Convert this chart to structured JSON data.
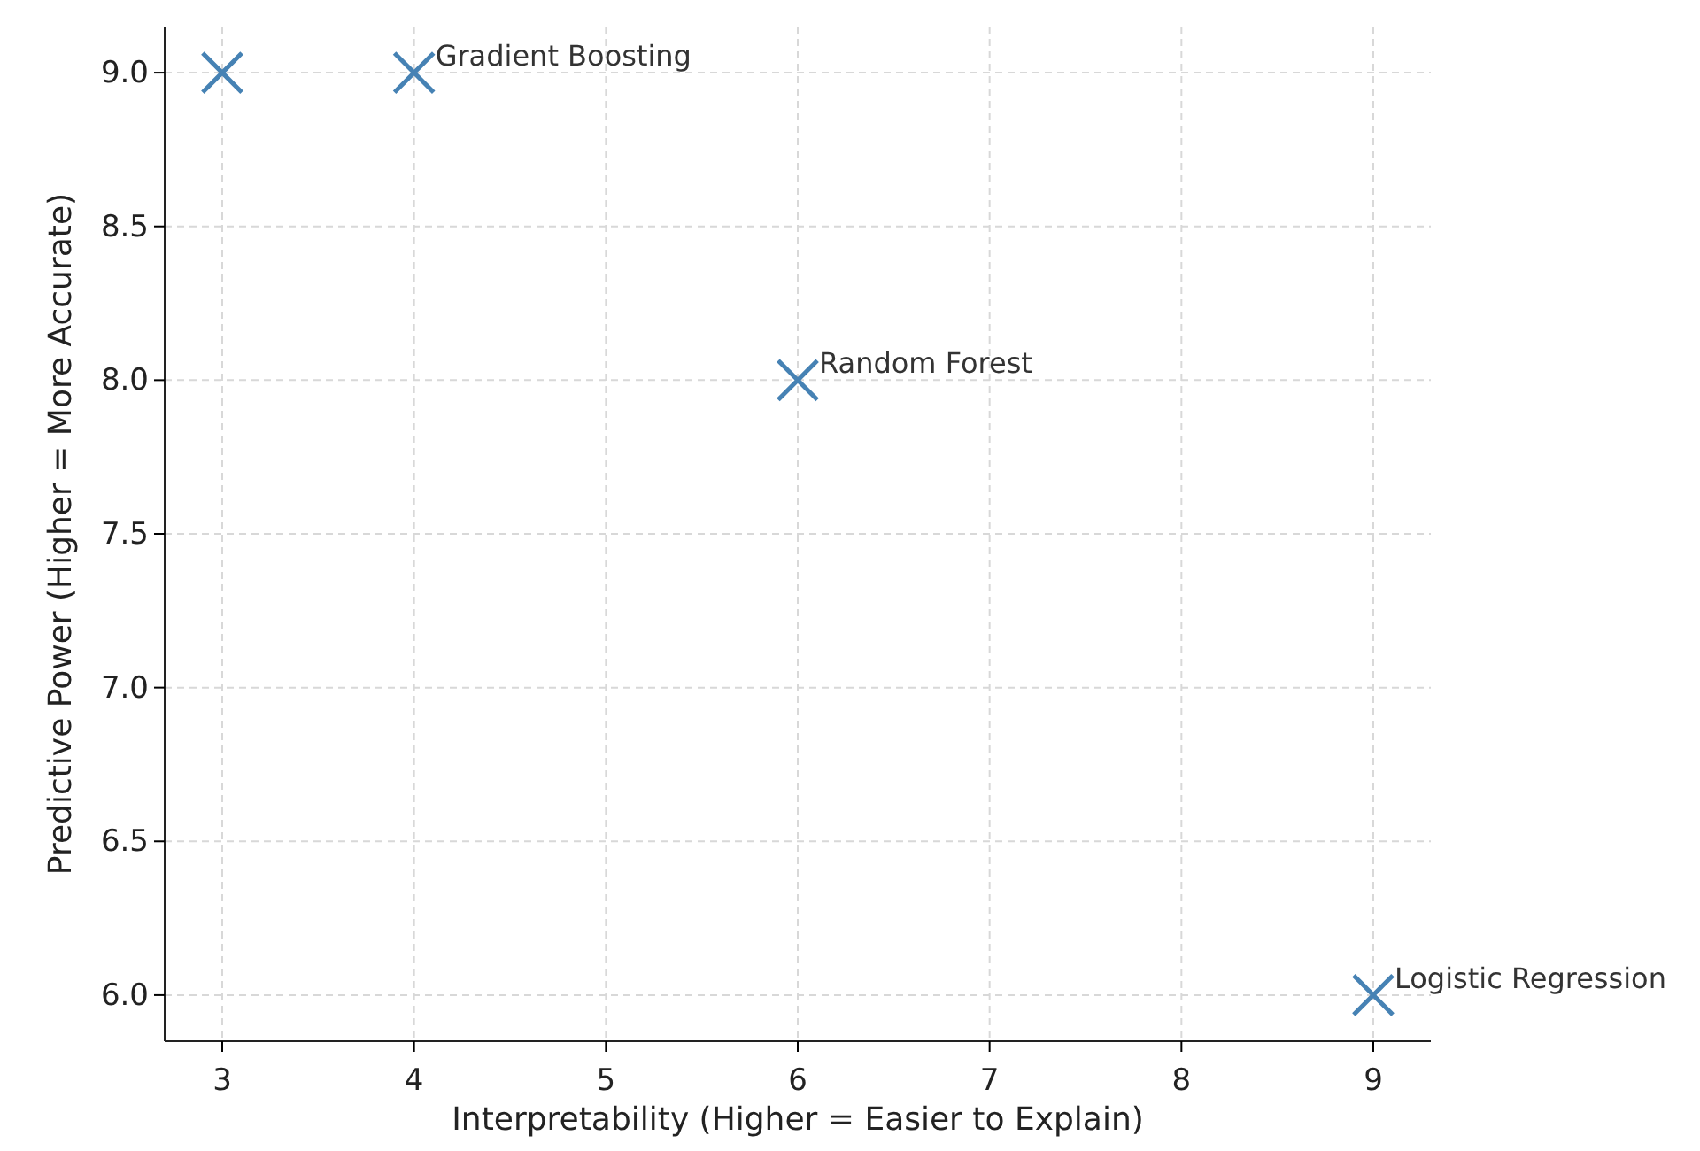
{
  "chart_data": {
    "type": "scatter",
    "xlabel": "Interpretability (Higher = Easier to Explain)",
    "ylabel": "Predictive Power (Higher = More Accurate)",
    "x": [
      3,
      4,
      6,
      9
    ],
    "series": [
      {
        "color": "#4682b4",
        "values": [
          9,
          9,
          8,
          6
        ]
      }
    ],
    "marker": "cross",
    "xlim": [
      2.7,
      9.3
    ],
    "xticks": [
      3,
      4,
      5,
      6,
      7,
      8,
      9
    ],
    "ylim": [
      5.85,
      9.15
    ],
    "yticks": [
      {
        "value": 6,
        "label": "6.0"
      },
      {
        "value": 6.5,
        "label": "6.5"
      },
      {
        "value": 7,
        "label": "7.0"
      },
      {
        "value": 7.5,
        "label": "7.5"
      },
      {
        "value": 8,
        "label": "8.0"
      },
      {
        "value": 8.5,
        "label": "8.5"
      },
      {
        "value": 9,
        "label": "9.0"
      }
    ],
    "grid": true,
    "annotations": [
      {
        "text": "Gradient Boosting",
        "x": 4,
        "y": 9
      },
      {
        "text": "Random Forest",
        "x": 6,
        "y": 8
      },
      {
        "text": "Logistic Regression",
        "x": 9,
        "y": 6
      }
    ]
  }
}
